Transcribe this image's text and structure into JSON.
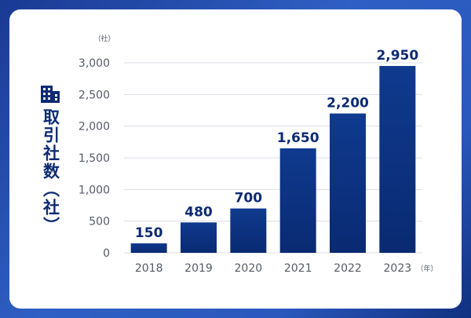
{
  "chart_data": {
    "type": "bar",
    "categories": [
      "2018",
      "2019",
      "2020",
      "2021",
      "2022",
      "2023"
    ],
    "values": [
      150,
      480,
      700,
      1650,
      2200,
      2950
    ],
    "value_labels": [
      "150",
      "480",
      "700",
      "1,650",
      "2,200",
      "2,950"
    ],
    "ylabel": "取引社数（社）",
    "y_unit": "（社）",
    "x_unit": "（年）",
    "ylim": [
      0,
      3000
    ],
    "yticks": [
      0,
      500,
      1000,
      1500,
      2000,
      2500,
      3000
    ],
    "ytick_labels": [
      "0",
      "500",
      "1,000",
      "1,500",
      "2,000",
      "2,500",
      "3,000"
    ],
    "grid": true,
    "legend": "none",
    "colors": {
      "bar_top": "#0f3a8e",
      "bar_bottom": "#0a2a72",
      "text": "#0d2a72",
      "axis_text": "#555a66",
      "grid": "#d9dde6",
      "frame": "#2a58bd"
    }
  },
  "icons": {
    "ylabel_icon": "building-icon"
  }
}
